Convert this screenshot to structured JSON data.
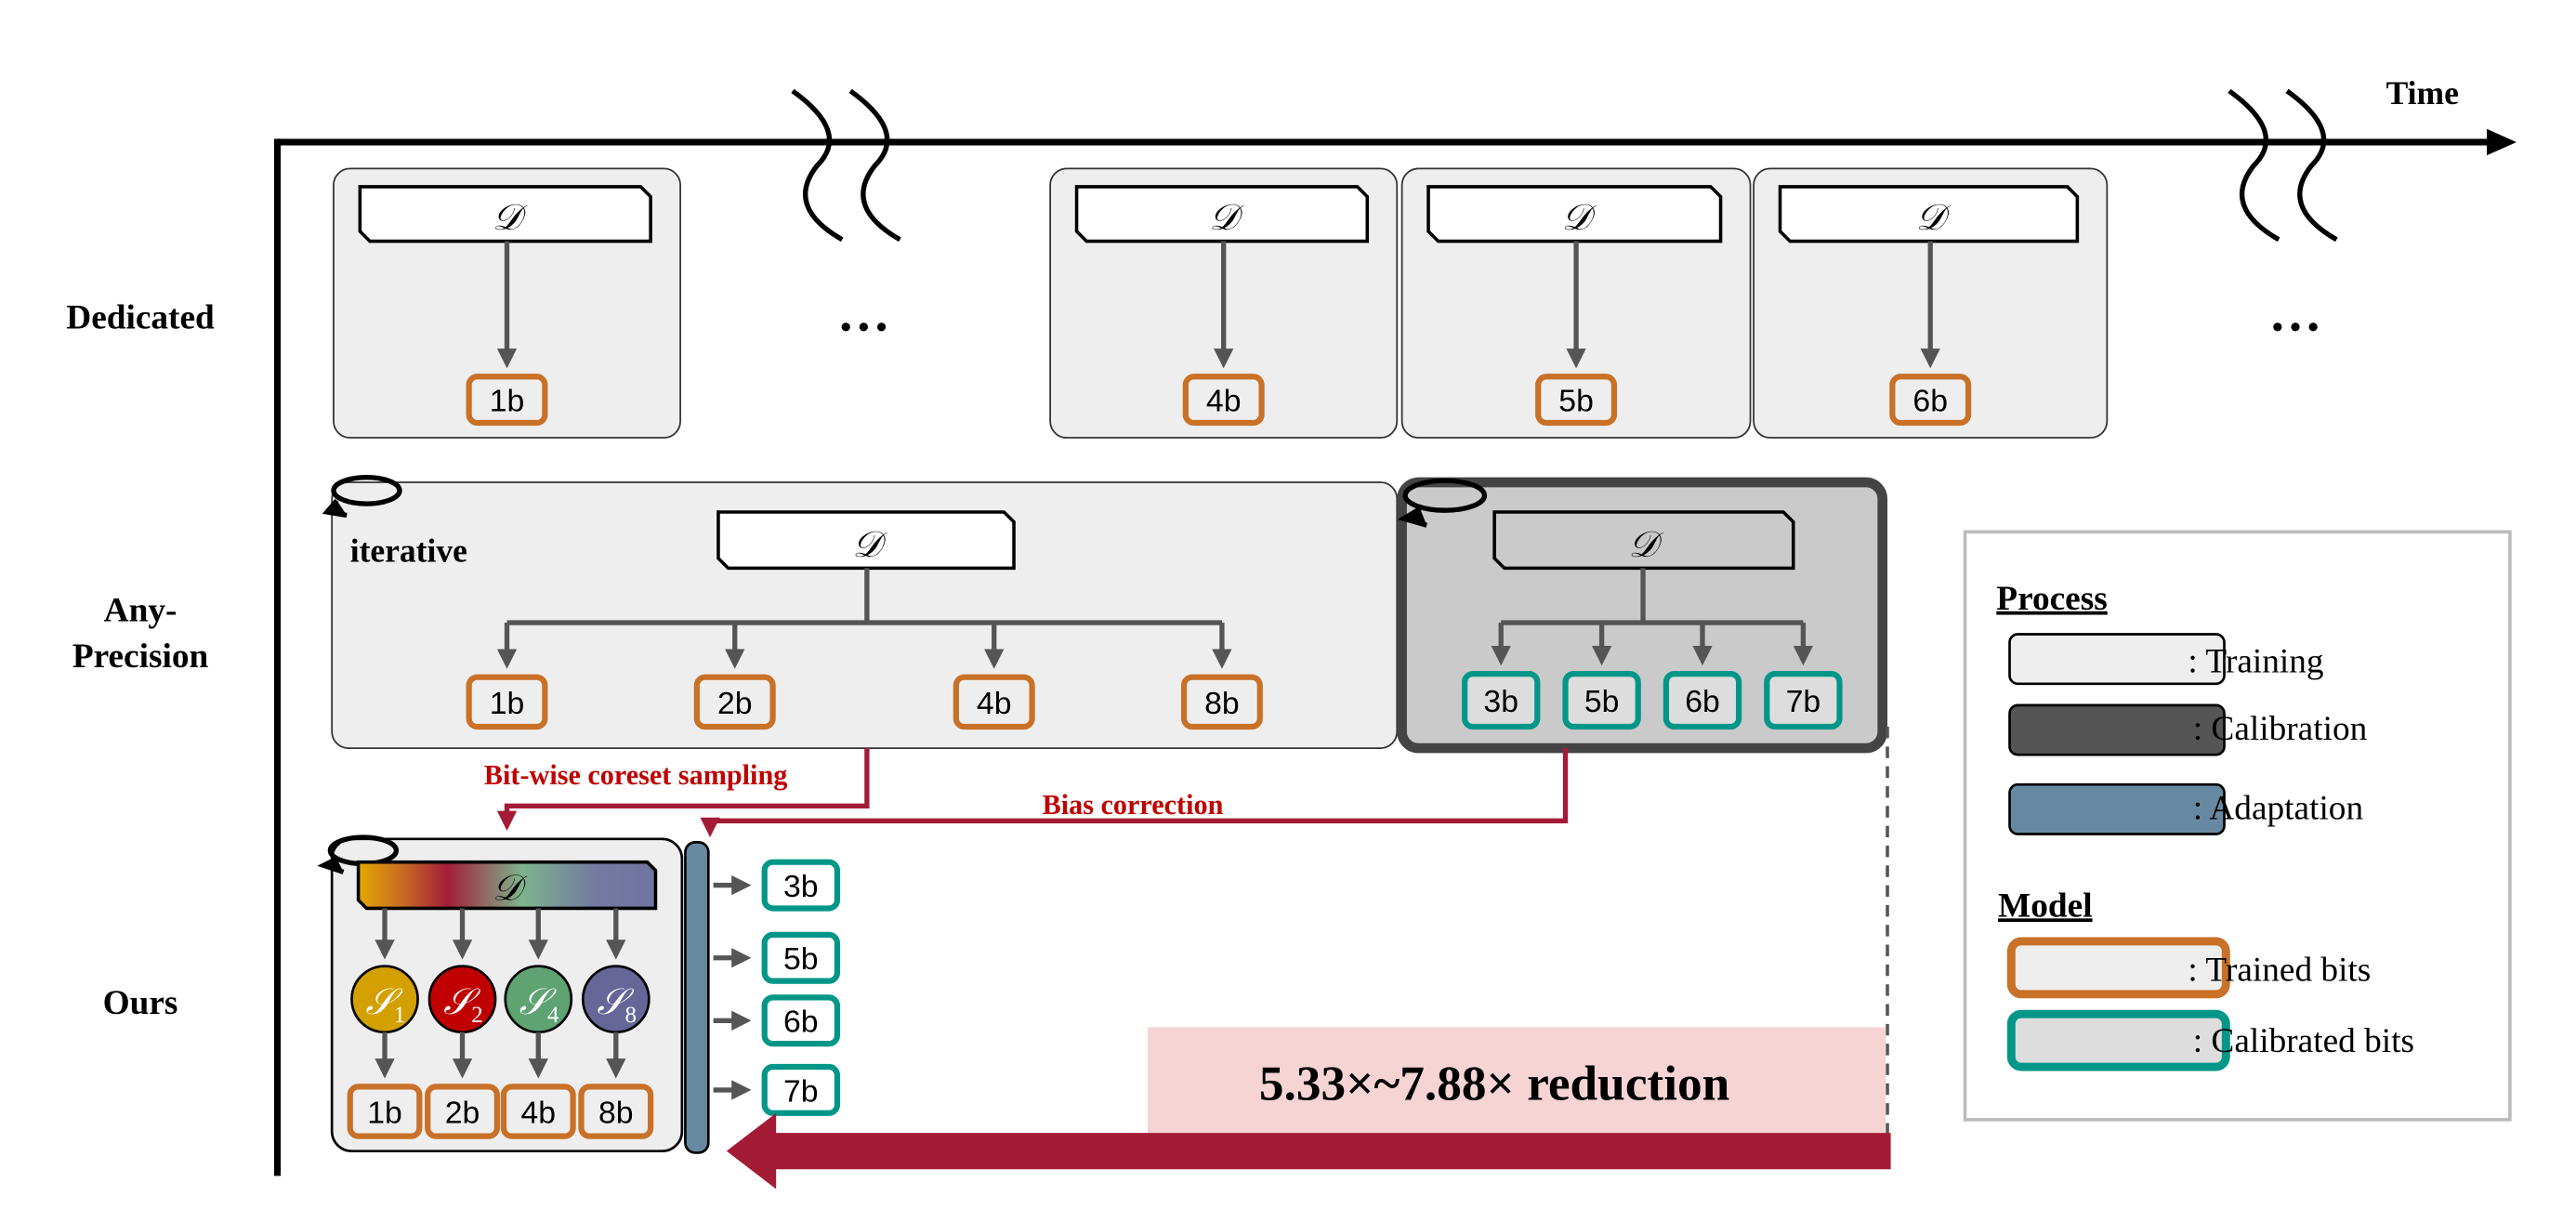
{
  "axis": {
    "label": "Time"
  },
  "rows": {
    "dedicated": "Dedicated",
    "any_precision_line1": "Any-",
    "any_precision_line2": "Precision",
    "ours": "Ours"
  },
  "dataset_symbol": "𝒟",
  "ellipsis": "…",
  "dedicated": {
    "models": [
      "1b",
      "4b",
      "5b",
      "6b"
    ]
  },
  "any_precision": {
    "iterative_label": "iterative",
    "trained_models": [
      "1b",
      "2b",
      "4b",
      "8b"
    ],
    "calibrated_models": [
      "3b",
      "5b",
      "6b",
      "7b"
    ]
  },
  "annotations": {
    "coreset": "Bit-wise coreset sampling",
    "bias": "Bias correction",
    "reduction": "5.33×~7.88× reduction"
  },
  "ours": {
    "subsets": [
      {
        "symbol": "𝒮",
        "sub": "1",
        "color": "#D4A000"
      },
      {
        "symbol": "𝒮",
        "sub": "2",
        "color": "#C00000"
      },
      {
        "symbol": "𝒮",
        "sub": "4",
        "color": "#5FA373"
      },
      {
        "symbol": "𝒮",
        "sub": "8",
        "color": "#666699"
      }
    ],
    "trained_models": [
      "1b",
      "2b",
      "4b",
      "8b"
    ],
    "adapted_models": [
      "3b",
      "5b",
      "6b",
      "7b"
    ]
  },
  "legend": {
    "process_title": "Process",
    "training": ": Training",
    "calibration": ": Calibration",
    "adaptation": ": Adaptation",
    "model_title": "Model",
    "trained": ": Trained bits",
    "calibrated": ": Calibrated bits"
  },
  "colors": {
    "trained": "#C87127",
    "calibrated": "#009688",
    "adaptation": "#6689A1",
    "calibration": "#555555",
    "training": "#EEEEEE",
    "red": "#A31B34",
    "pink": "#F6D4D4"
  }
}
